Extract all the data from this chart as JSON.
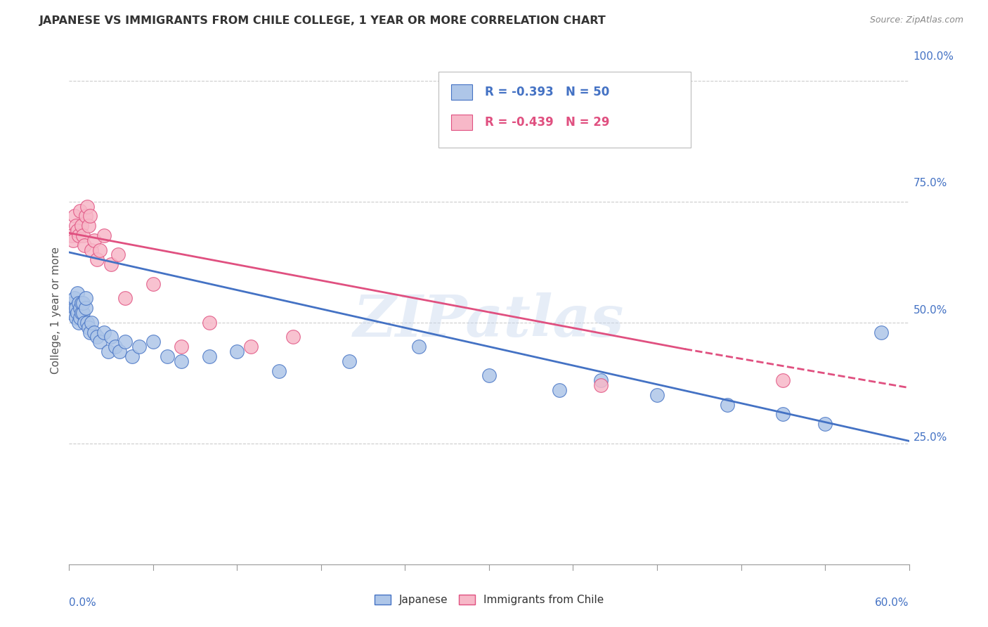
{
  "title": "JAPANESE VS IMMIGRANTS FROM CHILE COLLEGE, 1 YEAR OR MORE CORRELATION CHART",
  "source": "Source: ZipAtlas.com",
  "ylabel": "College, 1 year or more",
  "xmin": 0.0,
  "xmax": 0.6,
  "ymin": 0.0,
  "ymax": 1.05,
  "watermark": "ZIPatlas",
  "legend_blue_r": "-0.393",
  "legend_blue_n": "50",
  "legend_pink_r": "-0.439",
  "legend_pink_n": "29",
  "blue_scatter_color": "#aec6e8",
  "pink_scatter_color": "#f7b8c8",
  "blue_line_color": "#4472c4",
  "pink_line_color": "#e05080",
  "blue_text_color": "#4472c4",
  "pink_text_color": "#e05080",
  "axis_label_color": "#4472c4",
  "title_color": "#333333",
  "source_color": "#888888",
  "grid_color": "#cccccc",
  "japanese_x": [
    0.002,
    0.003,
    0.004,
    0.004,
    0.005,
    0.005,
    0.006,
    0.006,
    0.007,
    0.007,
    0.008,
    0.008,
    0.009,
    0.009,
    0.01,
    0.01,
    0.011,
    0.012,
    0.012,
    0.013,
    0.014,
    0.015,
    0.016,
    0.018,
    0.02,
    0.022,
    0.025,
    0.028,
    0.03,
    0.033,
    0.036,
    0.04,
    0.045,
    0.05,
    0.06,
    0.07,
    0.08,
    0.1,
    0.12,
    0.15,
    0.2,
    0.25,
    0.3,
    0.35,
    0.38,
    0.42,
    0.47,
    0.51,
    0.54,
    0.58
  ],
  "japanese_y": [
    0.52,
    0.54,
    0.53,
    0.55,
    0.51,
    0.53,
    0.52,
    0.56,
    0.54,
    0.5,
    0.51,
    0.53,
    0.52,
    0.54,
    0.52,
    0.54,
    0.5,
    0.53,
    0.55,
    0.5,
    0.49,
    0.48,
    0.5,
    0.48,
    0.47,
    0.46,
    0.48,
    0.44,
    0.47,
    0.45,
    0.44,
    0.46,
    0.43,
    0.45,
    0.46,
    0.43,
    0.42,
    0.43,
    0.44,
    0.4,
    0.42,
    0.45,
    0.39,
    0.36,
    0.38,
    0.35,
    0.33,
    0.31,
    0.29,
    0.48
  ],
  "chile_x": [
    0.002,
    0.003,
    0.004,
    0.005,
    0.006,
    0.007,
    0.008,
    0.009,
    0.01,
    0.011,
    0.012,
    0.013,
    0.014,
    0.015,
    0.016,
    0.018,
    0.02,
    0.022,
    0.025,
    0.03,
    0.035,
    0.04,
    0.06,
    0.08,
    0.1,
    0.13,
    0.16,
    0.38,
    0.51
  ],
  "chile_y": [
    0.68,
    0.67,
    0.72,
    0.7,
    0.69,
    0.68,
    0.73,
    0.7,
    0.68,
    0.66,
    0.72,
    0.74,
    0.7,
    0.72,
    0.65,
    0.67,
    0.63,
    0.65,
    0.68,
    0.62,
    0.64,
    0.55,
    0.58,
    0.45,
    0.5,
    0.45,
    0.47,
    0.37,
    0.38
  ],
  "blue_line_x0": 0.0,
  "blue_line_y0": 0.645,
  "blue_line_x1": 0.6,
  "blue_line_y1": 0.255,
  "pink_line_x0": 0.0,
  "pink_line_y0": 0.685,
  "pink_line_x1": 0.6,
  "pink_line_y1": 0.365,
  "pink_line_dashed_x0": 0.44,
  "pink_line_dashed_x1": 0.6,
  "pink_line_dashed_y0": 0.445,
  "pink_line_dashed_y1": 0.365
}
